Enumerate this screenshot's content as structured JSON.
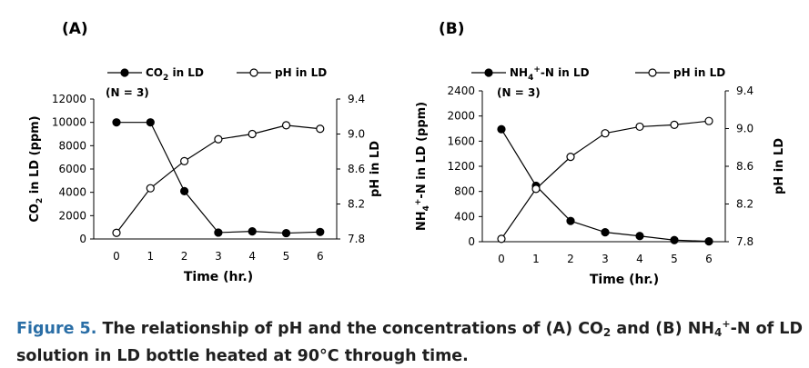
{
  "chart_data": [
    {
      "panel_label": "(A)",
      "type": "line",
      "x": [
        0,
        1,
        2,
        3,
        4,
        5,
        6
      ],
      "xlabel": "Time (hr.)",
      "xticks": [
        "0",
        "1",
        "2",
        "3",
        "4",
        "5",
        "6"
      ],
      "note": "(N = 3)",
      "left_axis": {
        "label_main": "CO",
        "label_sub": "2",
        "label_rest": " in LD (ppm)",
        "range": [
          0,
          12000
        ],
        "ticks": [
          "0",
          "2000",
          "4000",
          "6000",
          "8000",
          "10000",
          "12000"
        ]
      },
      "right_axis": {
        "label": "pH in LD",
        "range": [
          7.8,
          9.4
        ],
        "ticks": [
          "7.8",
          "8.2",
          "8.6",
          "9.0",
          "9.4"
        ]
      },
      "series": [
        {
          "name": "CO2 in LD",
          "legend_main": "CO",
          "legend_sub": "2",
          "legend_rest": " in LD",
          "axis": "left",
          "marker": "filled",
          "values": [
            10000,
            10000,
            4100,
            550,
            650,
            500,
            600
          ]
        },
        {
          "name": "pH in LD",
          "legend_main": "pH in LD",
          "legend_sub": "",
          "legend_rest": "",
          "axis": "right",
          "marker": "open",
          "values": [
            7.87,
            8.38,
            8.69,
            8.94,
            9.0,
            9.1,
            9.06
          ]
        }
      ]
    },
    {
      "panel_label": "(B)",
      "type": "line",
      "x": [
        0,
        1,
        2,
        3,
        4,
        5,
        6
      ],
      "xlabel": "Time (hr.)",
      "xticks": [
        "0",
        "1",
        "2",
        "3",
        "4",
        "5",
        "6"
      ],
      "note": "(N = 3)",
      "left_axis": {
        "label_main": "NH",
        "label_sub": "4",
        "label_sup": "+",
        "label_rest": "-N in LD (ppm)",
        "range": [
          0,
          2400
        ],
        "ticks": [
          "0",
          "400",
          "800",
          "1200",
          "1600",
          "2000",
          "2400"
        ]
      },
      "right_axis": {
        "label": "pH in LD",
        "range": [
          7.8,
          9.4
        ],
        "ticks": [
          "7.8",
          "8.2",
          "8.6",
          "9.0",
          "9.4"
        ]
      },
      "series": [
        {
          "name": "NH4+-N in LD",
          "legend_main": "NH",
          "legend_sub": "4",
          "legend_sup": "+",
          "legend_rest": "-N    in LD",
          "axis": "left",
          "marker": "filled",
          "values": [
            1790,
            890,
            330,
            150,
            90,
            25,
            5
          ]
        },
        {
          "name": "pH in LD",
          "legend_main": "pH in LD",
          "legend_sub": "",
          "legend_rest": "",
          "axis": "right",
          "marker": "open",
          "values": [
            7.83,
            8.36,
            8.7,
            8.95,
            9.02,
            9.04,
            9.08
          ]
        }
      ]
    }
  ],
  "caption": {
    "label": "Figure 5.",
    "part1": " The relationship of pH and the concentrations of (A) CO",
    "sub1": "2",
    "part2": " and (B) NH",
    "sub2": "4",
    "sup2": "+",
    "part3": "-N of LD solution in LD bottle heated at 90°C through time."
  }
}
